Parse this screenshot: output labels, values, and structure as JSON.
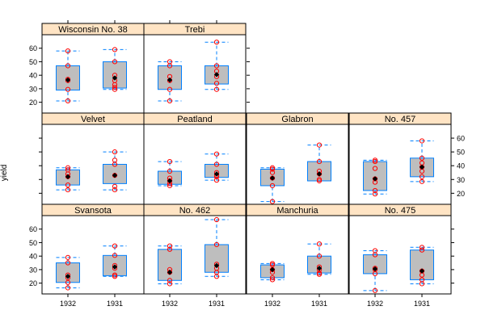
{
  "chart_data": {
    "type": "box",
    "ylabel": "yield",
    "categories": [
      "1932",
      "1931"
    ],
    "y_ticks": [
      20,
      30,
      40,
      50,
      60
    ],
    "ylim": [
      12,
      70
    ],
    "colors": {
      "strip": "#FFE4C4",
      "box_fill": "#BEBEBE",
      "box_stroke": "#0080FF",
      "whisker": "#0080FF",
      "point": "#FF0000",
      "median": "#000000",
      "frame": "#000000"
    },
    "panels": [
      {
        "name": "Wisconsin No. 38",
        "boxes": [
          {
            "q1": 29,
            "q3": 47,
            "lo": 21,
            "hi": 58,
            "median": 36.5,
            "points": [
              21,
              29.5,
              36,
              37,
              47,
              58
            ]
          },
          {
            "q1": 30.5,
            "q3": 50,
            "lo": 29.5,
            "hi": 59,
            "median": 38,
            "points": [
              29.5,
              31,
              33,
              36,
              40,
              50,
              59
            ]
          }
        ]
      },
      {
        "name": "Trebi",
        "boxes": [
          {
            "q1": 29.5,
            "q3": 47,
            "lo": 21,
            "hi": 50,
            "median": 36.5,
            "points": [
              21,
              29.5,
              36,
              39,
              47,
              50
            ]
          },
          {
            "q1": 33.5,
            "q3": 47,
            "lo": 29.5,
            "hi": 64.5,
            "median": 40.5,
            "points": [
              29.5,
              34,
              39,
              43,
              47,
              64.5
            ]
          }
        ]
      },
      {
        "name": "Velvet",
        "boxes": [
          {
            "q1": 26,
            "q3": 37,
            "lo": 22.5,
            "hi": 38.5,
            "median": 32,
            "points": [
              22.5,
              26,
              32,
              34,
              37,
              38.5
            ]
          },
          {
            "q1": 27,
            "q3": 41,
            "lo": 22.5,
            "hi": 50,
            "median": 33,
            "points": [
              22.5,
              25,
              33,
              41,
              44,
              50
            ]
          }
        ]
      },
      {
        "name": "Peatland",
        "boxes": [
          {
            "q1": 26.5,
            "q3": 36,
            "lo": 25.5,
            "hi": 43,
            "median": 29,
            "points": [
              25.5,
              27,
              29,
              31,
              36,
              43
            ]
          },
          {
            "q1": 31.5,
            "q3": 41,
            "lo": 29.5,
            "hi": 48.5,
            "median": 34,
            "points": [
              29.5,
              32,
              33,
              35,
              41,
              48.5
            ]
          }
        ]
      },
      {
        "name": "Glabron",
        "boxes": [
          {
            "q1": 25.5,
            "q3": 37.5,
            "lo": 14,
            "hi": 38.5,
            "median": 31,
            "points": [
              14,
              25.5,
              31,
              35,
              37.5,
              38.5
            ]
          },
          {
            "q1": 29,
            "q3": 43,
            "lo": 29,
            "hi": 55,
            "median": 34,
            "points": [
              29,
              30,
              34,
              36,
              43,
              55
            ]
          }
        ]
      },
      {
        "name": "No. 457",
        "boxes": [
          {
            "q1": 22,
            "q3": 43,
            "lo": 19.5,
            "hi": 44,
            "median": 30.5,
            "points": [
              19.5,
              22,
              28,
              30.5,
              38,
              43,
              44
            ]
          },
          {
            "q1": 32,
            "q3": 45.5,
            "lo": 28.5,
            "hi": 58,
            "median": 39,
            "points": [
              28.5,
              32,
              36,
              39,
              42,
              45.5,
              58
            ]
          }
        ]
      },
      {
        "name": "Svansota",
        "boxes": [
          {
            "q1": 20.5,
            "q3": 35,
            "lo": 16.5,
            "hi": 39,
            "median": 25,
            "points": [
              16.5,
              20.5,
              24,
              26,
              35,
              39
            ]
          },
          {
            "q1": 25.5,
            "q3": 40.5,
            "lo": 25,
            "hi": 47.5,
            "median": 32,
            "points": [
              25,
              26,
              31,
              33,
              40.5,
              47.5
            ]
          }
        ]
      },
      {
        "name": "No. 462",
        "boxes": [
          {
            "q1": 22,
            "q3": 45,
            "lo": 19.5,
            "hi": 47.5,
            "median": 28,
            "points": [
              19.5,
              22,
              28,
              30,
              45,
              47.5
            ]
          },
          {
            "q1": 28,
            "q3": 48.5,
            "lo": 25,
            "hi": 67,
            "median": 33,
            "points": [
              25,
              28,
              31,
              34,
              48.5,
              67
            ]
          }
        ]
      },
      {
        "name": "Manchuria",
        "boxes": [
          {
            "q1": 24,
            "q3": 33.5,
            "lo": 22.5,
            "hi": 34.5,
            "median": 30,
            "points": [
              22.5,
              24,
              28,
              30,
              33.5,
              34.5
            ]
          },
          {
            "q1": 27.5,
            "q3": 40,
            "lo": 26.5,
            "hi": 49,
            "median": 31,
            "points": [
              26.5,
              27.5,
              30,
              32,
              40,
              49
            ]
          }
        ]
      },
      {
        "name": "No. 475",
        "boxes": [
          {
            "q1": 27,
            "q3": 41,
            "lo": 14.5,
            "hi": 44,
            "median": 30.5,
            "points": [
              14.5,
              27,
              30,
              31,
              41,
              44
            ]
          },
          {
            "q1": 22.5,
            "q3": 44.5,
            "lo": 19.5,
            "hi": 46.5,
            "median": 29,
            "points": [
              19.5,
              22.5,
              26,
              29,
              44.5,
              46.5
            ]
          }
        ]
      }
    ]
  }
}
